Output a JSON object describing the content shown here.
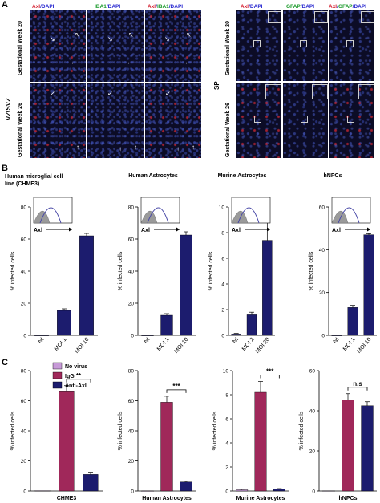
{
  "panelA": {
    "letter": "A",
    "left_row_label": "VZ/SVZ",
    "right_row_label": "SP",
    "week20": "Gestational Week 20",
    "week26": "Gestational Week 26",
    "left_channels": [
      [
        {
          "text": "Axl",
          "color": "#d42030"
        },
        {
          "text": "/DAPI",
          "color": "#2a2ad0"
        }
      ],
      [
        {
          "text": "IBA1",
          "color": "#1a9a2a"
        },
        {
          "text": "/DAPI",
          "color": "#2a2ad0"
        }
      ],
      [
        {
          "text": "Axl",
          "color": "#d42030"
        },
        {
          "text": "/",
          "color": "#2a2ad0"
        },
        {
          "text": "IBA1",
          "color": "#1a9a2a"
        },
        {
          "text": "/DAPI",
          "color": "#2a2ad0"
        }
      ]
    ],
    "right_channels": [
      [
        {
          "text": "Axl",
          "color": "#d42030"
        },
        {
          "text": "/DAPI",
          "color": "#2a2ad0"
        }
      ],
      [
        {
          "text": "GFAP",
          "color": "#1a9a2a"
        },
        {
          "text": "/DAPI",
          "color": "#2a2ad0"
        }
      ],
      [
        {
          "text": "Axl",
          "color": "#d42030"
        },
        {
          "text": "/",
          "color": "#2a2ad0"
        },
        {
          "text": "GFAP",
          "color": "#1a9a2a"
        },
        {
          "text": "/DAPI",
          "color": "#2a2ad0"
        }
      ]
    ]
  },
  "panelB": {
    "letter": "B"
  },
  "panelC": {
    "letter": "C"
  },
  "colors": {
    "bar": "#1c1c6e",
    "igg": "#a0285a",
    "novirus": "#c79ad8",
    "histline": "#4a4aa8",
    "histfill": "#9a9a9a"
  },
  "chart_data": [
    {
      "type": "bar",
      "title": "Human microglial cell line (CHME3)",
      "ylabel": "% infected cells",
      "categories": [
        "NI",
        "MOI 1",
        "MOI 10"
      ],
      "values": [
        0,
        15.5,
        62
      ],
      "errors": [
        0,
        1,
        1.5
      ],
      "ylim": [
        0,
        80
      ],
      "yticks": [
        0,
        20,
        40,
        60,
        80
      ],
      "inset_label": "Axl"
    },
    {
      "type": "bar",
      "title": "Human Astrocytes",
      "ylabel": "% infected cells",
      "categories": [
        "NI",
        "MOI 1",
        "MOI 10"
      ],
      "values": [
        0,
        12.5,
        62.5
      ],
      "errors": [
        0,
        1,
        2
      ],
      "ylim": [
        0,
        80
      ],
      "yticks": [
        0,
        20,
        40,
        60,
        80
      ],
      "inset_label": "Axl"
    },
    {
      "type": "bar",
      "title": "Murine Astrocytes",
      "ylabel": "% infected cells",
      "categories": [
        "NI",
        "MOI 2",
        "MOI 20"
      ],
      "values": [
        0.1,
        1.6,
        7.4
      ],
      "errors": [
        0.05,
        0.2,
        1.9
      ],
      "ylim": [
        0,
        10
      ],
      "yticks": [
        0,
        2,
        4,
        6,
        8,
        10
      ],
      "inset_label": "Axl"
    },
    {
      "type": "bar",
      "title": "hNPCs",
      "ylabel": "% infected cells",
      "categories": [
        "NI",
        "MOI 1",
        "MOI 10"
      ],
      "values": [
        0,
        13,
        47
      ],
      "errors": [
        0,
        1,
        0.5
      ],
      "ylim": [
        0,
        60
      ],
      "yticks": [
        0,
        20,
        40,
        60
      ],
      "inset_label": "Axl"
    },
    {
      "type": "bar",
      "title": "CHME3",
      "ylabel": "% infected cells",
      "categories": [
        "No virus",
        "IgG",
        "Anti-Axl"
      ],
      "values": [
        0.2,
        66,
        11
      ],
      "errors": [
        0,
        4,
        1.5
      ],
      "ylim": [
        0,
        80
      ],
      "yticks": [
        0,
        20,
        40,
        60,
        80
      ],
      "significance": "**",
      "legend": [
        "No virus",
        "IgG",
        "Anti-Axl"
      ]
    },
    {
      "type": "bar",
      "title": "Human Astrocytes",
      "ylabel": "% infected cells",
      "categories": [
        "No virus",
        "IgG",
        "Anti-Axl"
      ],
      "values": [
        0.1,
        59,
        6
      ],
      "errors": [
        0,
        4,
        0.5
      ],
      "ylim": [
        0,
        80
      ],
      "yticks": [
        0,
        20,
        40,
        60,
        80
      ],
      "significance": "***"
    },
    {
      "type": "bar",
      "title": "Murine Astrocytes",
      "ylabel": "% infected cells",
      "categories": [
        "No virus",
        "IgG",
        "Anti-Axl"
      ],
      "values": [
        0.1,
        8.2,
        0.15
      ],
      "errors": [
        0.05,
        0.9,
        0.05
      ],
      "ylim": [
        0,
        10
      ],
      "yticks": [
        0,
        2,
        4,
        6,
        8,
        10
      ],
      "significance": "***"
    },
    {
      "type": "bar",
      "title": "hNPCs",
      "ylabel": "% infected cells",
      "categories": [
        "No virus",
        "IgG",
        "Anti-Axl"
      ],
      "values": [
        0.1,
        45.5,
        42.5
      ],
      "errors": [
        0,
        3,
        2
      ],
      "ylim": [
        0,
        60
      ],
      "yticks": [
        0,
        20,
        40,
        60
      ],
      "significance": "n.s"
    }
  ]
}
